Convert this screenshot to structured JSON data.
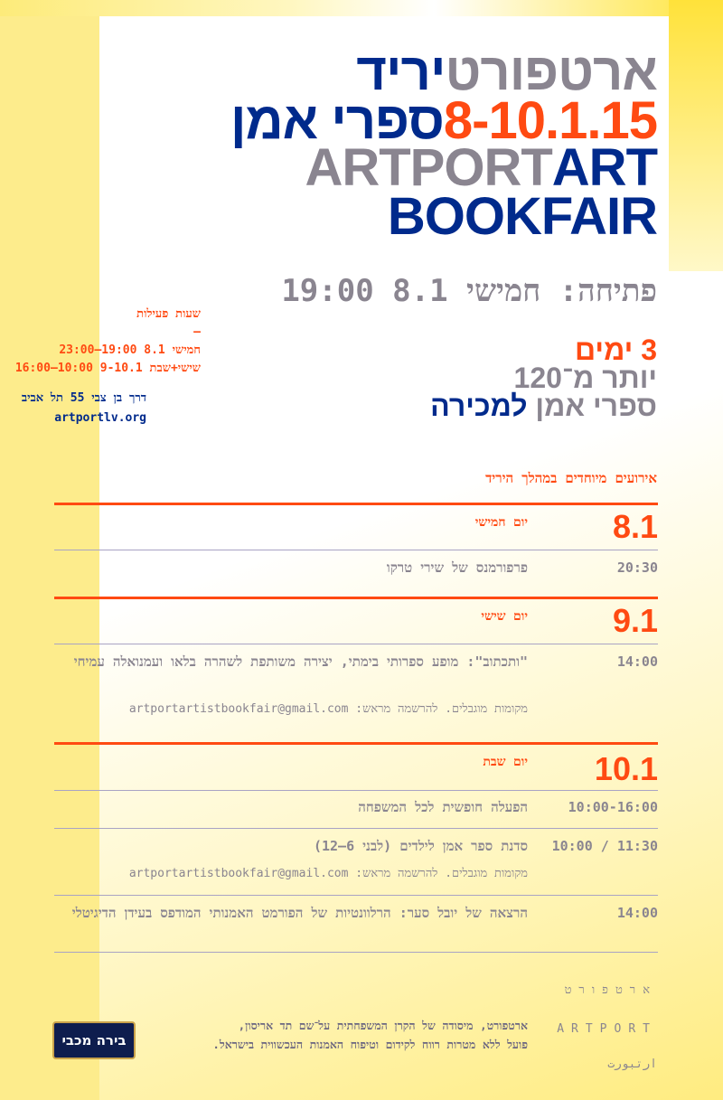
{
  "colors": {
    "gray": "#8a8590",
    "blue": "#002a8c",
    "orange": "#ff4a12",
    "yellow": "#fdec8c"
  },
  "title": {
    "line1": {
      "gray": "ארטפורט",
      "blue": "יריד"
    },
    "line2": {
      "orange": "8-10.1.15",
      "blue": "ספרי אמן"
    },
    "line3": {
      "gray": "ARTPORT",
      "blue": "ART"
    },
    "line4": "BOOKFAIR"
  },
  "opening": "פתיחה: חמישי 8.1 19:00",
  "hours": {
    "label": "שעות פעילות",
    "dash": "—",
    "thursday": "חמישי 8.1 19:00—23:00",
    "fri_sat": "שישי+שבת 9-10.1 10:00—16:00"
  },
  "address": {
    "street": "דרך בן צבי 55 תל אביב",
    "website": "artportlv.org"
  },
  "promo": {
    "days": "3 ימים",
    "more_than": "יותר מ־120",
    "books": "ספרי אמן",
    "for_sale": "למכירה"
  },
  "events": {
    "heading": "אירועים מיוחדים במהלך היריד",
    "days": [
      {
        "label": "יום חמישי",
        "date": "8.1",
        "items": [
          {
            "time": "20:30",
            "title": "פרפורמנס של שירי טרקו"
          }
        ]
      },
      {
        "label": "יום שישי",
        "date": "9.1",
        "items": [
          {
            "time": "14:00",
            "title": "\"ותכתוב\": מופע ספרותי בימתי, יצירה משותפת לשהרה בלאו ועמנואלה עמיחי",
            "note": "מקומות מוגבלים. להרשמה מראש: artportartistbookfair@gmail.com"
          }
        ]
      },
      {
        "label": "יום שבת",
        "date": "10.1",
        "items": [
          {
            "time": "10:00-16:00",
            "title": "הפעלה חופשית לכל המשפחה"
          },
          {
            "time": "10:00 / 11:30",
            "title": "סדנת ספר אמן לילדים (לבני 6–12)",
            "note": "מקומות מוגבלים. להרשמה מראש: artportartistbookfair@gmail.com"
          },
          {
            "time": "14:00",
            "title": "הרצאה של יובל סער: הרלוונטיות של הפורמט האמנותי המודפס בעידן הדיגיטלי"
          }
        ]
      }
    ]
  },
  "footer": {
    "hebrew": "ארטפורט",
    "english": "ARTPORT",
    "arabic": "ارتبورت",
    "line1": "ארטפורט, מיסודה של הקרן המשפחתית על־שם תד אריסון,",
    "line2": "פועל ללא מטרות רווח לקידום וטיפוח האמנות העכשווית בישראל.",
    "sponsor_logo": "בירה מכבי"
  }
}
